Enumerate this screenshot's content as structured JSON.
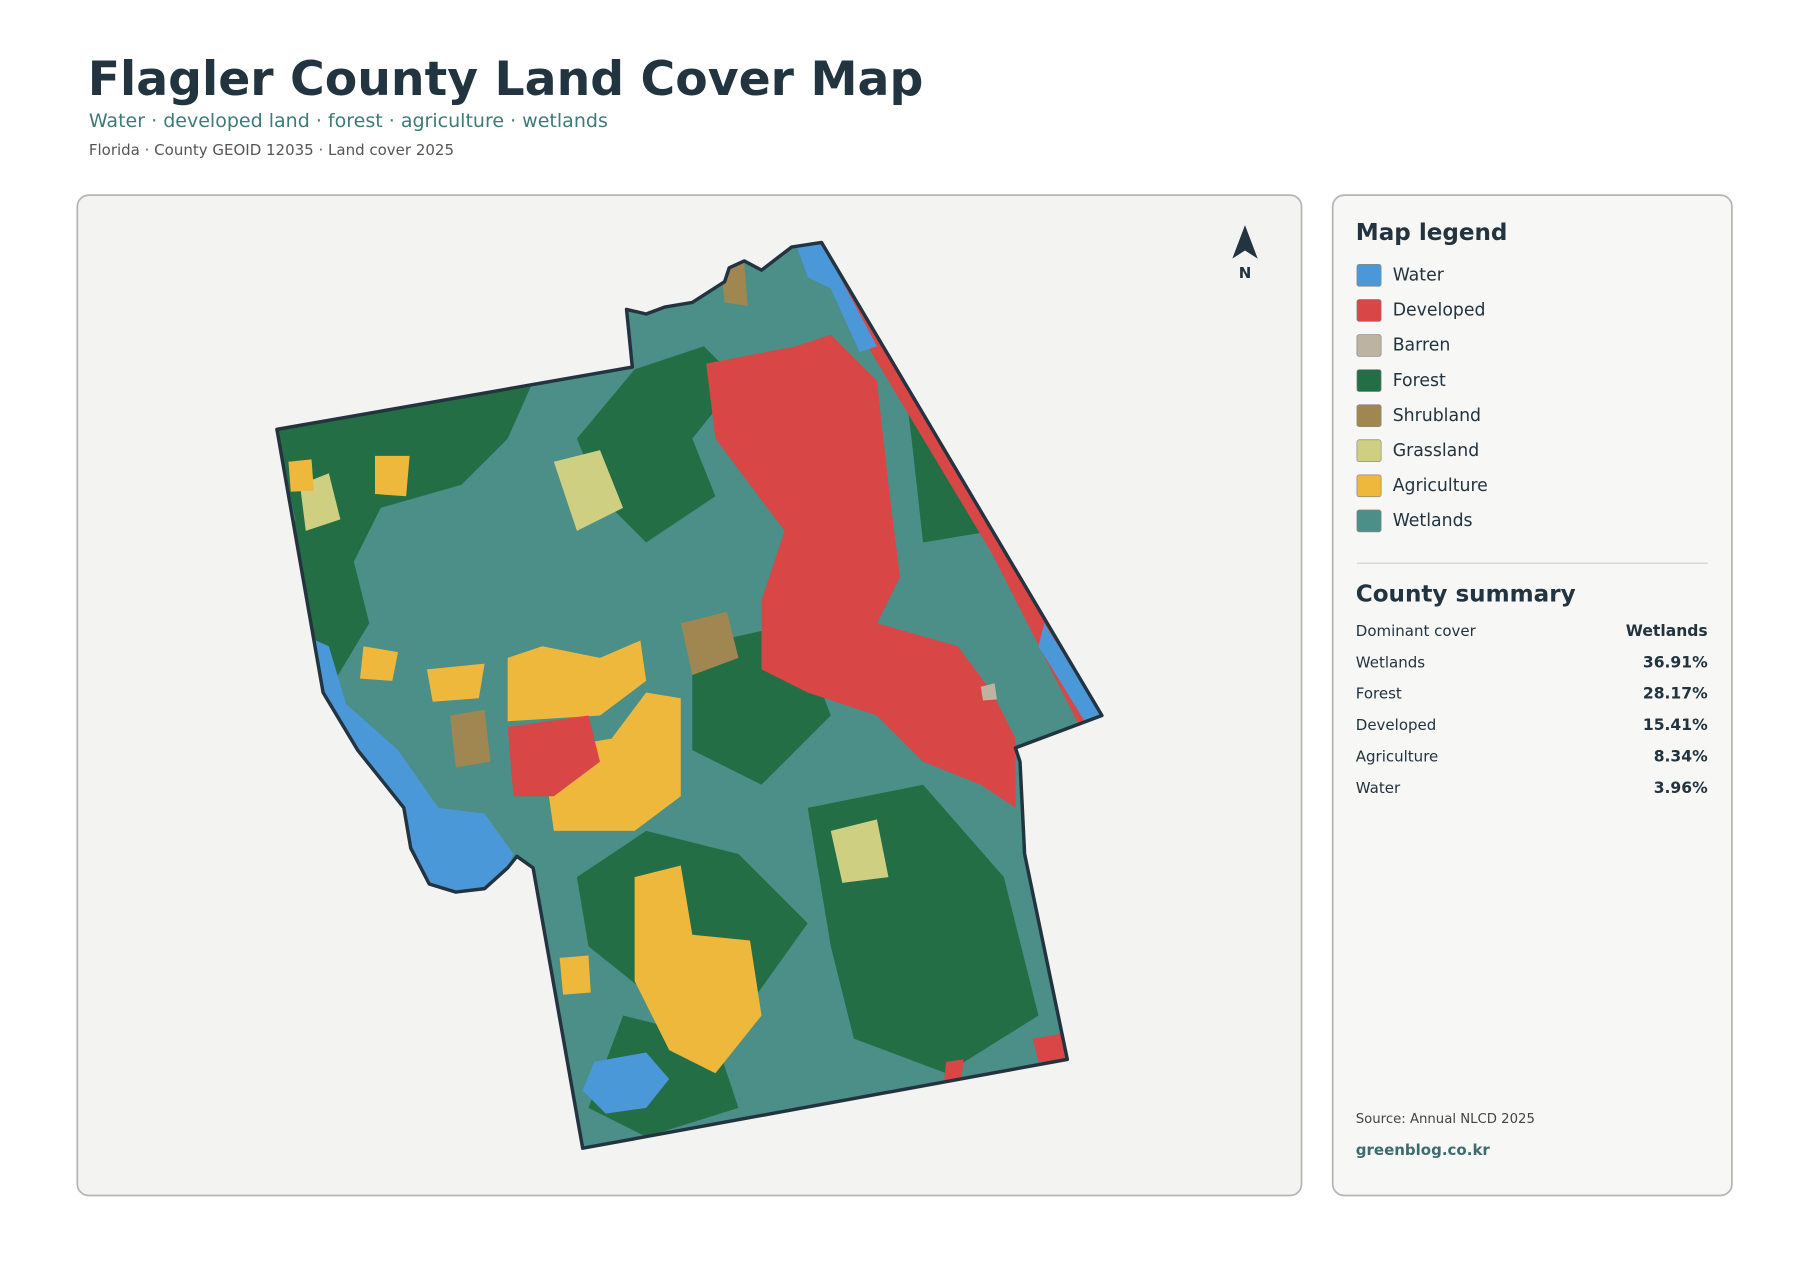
{
  "header": {
    "title": "Flagler County Land Cover Map",
    "subtitle": "Water · developed land · forest · agriculture · wetlands",
    "meta": "Florida · County GEOID 12035 · Land cover 2025"
  },
  "north": "N",
  "legend": {
    "title": "Map legend",
    "items": [
      {
        "label": "Water",
        "color": "#4a98d8"
      },
      {
        "label": "Developed",
        "color": "#d94646"
      },
      {
        "label": "Barren",
        "color": "#bcb3a0"
      },
      {
        "label": "Forest",
        "color": "#236e45"
      },
      {
        "label": "Shrubland",
        "color": "#a08650"
      },
      {
        "label": "Grassland",
        "color": "#cfcf82"
      },
      {
        "label": "Agriculture",
        "color": "#eeb83c"
      },
      {
        "label": "Wetlands",
        "color": "#4b8f88"
      }
    ]
  },
  "summary": {
    "title": "County summary",
    "rows": [
      {
        "label": "Dominant cover",
        "value": "Wetlands"
      },
      {
        "label": "Wetlands",
        "value": "36.91%"
      },
      {
        "label": "Forest",
        "value": "28.17%"
      },
      {
        "label": "Developed",
        "value": "15.41%"
      },
      {
        "label": "Agriculture",
        "value": "8.34%"
      },
      {
        "label": "Water",
        "value": "3.96%"
      }
    ]
  },
  "footer": {
    "source": "Source: Annual NLCD 2025",
    "site": "greenblog.co.kr"
  }
}
